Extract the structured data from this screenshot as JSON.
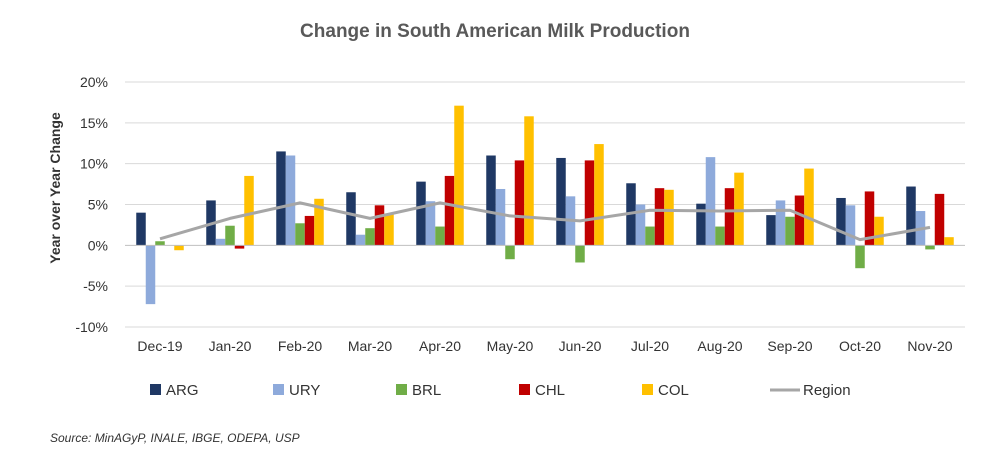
{
  "chart_data": {
    "type": "bar",
    "title": "Change in South American Milk Production",
    "ylabel": "Year over Year Change",
    "xlabel": "",
    "ylim": [
      -10,
      20
    ],
    "yticks": [
      -10,
      -5,
      0,
      5,
      10,
      15,
      20
    ],
    "ytick_labels": [
      "-10%",
      "-5%",
      "0%",
      "5%",
      "10%",
      "15%",
      "20%"
    ],
    "categories": [
      "Dec-19",
      "Jan-20",
      "Feb-20",
      "Mar-20",
      "Apr-20",
      "May-20",
      "Jun-20",
      "Jul-20",
      "Aug-20",
      "Sep-20",
      "Oct-20",
      "Nov-20"
    ],
    "series": [
      {
        "name": "ARG",
        "color": "#1f3864",
        "values": [
          4.0,
          5.5,
          11.5,
          6.5,
          7.8,
          11.0,
          10.7,
          7.6,
          5.1,
          3.7,
          5.8,
          7.2
        ]
      },
      {
        "name": "URY",
        "color": "#8eaadb",
        "values": [
          -7.2,
          0.8,
          11.0,
          1.3,
          5.4,
          6.9,
          6.0,
          5.0,
          10.8,
          5.5,
          4.9,
          4.2
        ]
      },
      {
        "name": "BRL",
        "color": "#70ad47",
        "values": [
          0.5,
          2.4,
          2.7,
          2.1,
          2.3,
          -1.7,
          -2.1,
          2.3,
          2.3,
          3.5,
          -2.8,
          -0.5
        ]
      },
      {
        "name": "CHL",
        "color": "#c00000",
        "values": [
          0.0,
          -0.4,
          3.6,
          4.9,
          8.5,
          10.4,
          10.4,
          7.0,
          7.0,
          6.1,
          6.6,
          6.3
        ]
      },
      {
        "name": "COL",
        "color": "#ffc000",
        "values": [
          -0.6,
          8.5,
          5.7,
          3.9,
          17.1,
          15.8,
          12.4,
          6.8,
          8.9,
          9.4,
          3.5,
          1.0
        ]
      }
    ],
    "line_series": {
      "name": "Region",
      "color": "#a6a6a6",
      "values": [
        0.8,
        3.3,
        5.2,
        3.3,
        5.2,
        3.6,
        3.0,
        4.3,
        4.2,
        4.3,
        0.7,
        2.2
      ]
    },
    "grid": true,
    "legend_position": "bottom"
  },
  "source_text": "Source: MinAGyP, INALE, IBGE, ODEPA, USP"
}
